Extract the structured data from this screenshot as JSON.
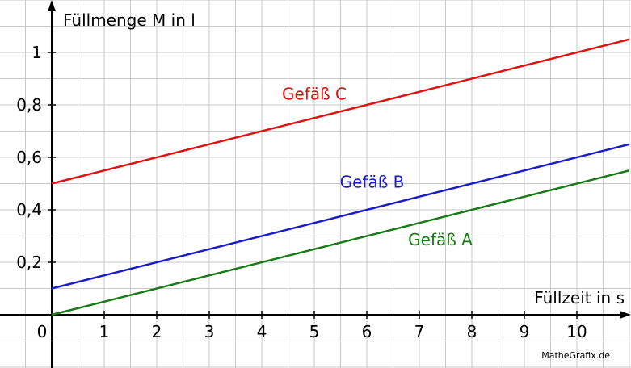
{
  "chart_data": {
    "type": "line",
    "xlabel": "Füllzeit in s",
    "ylabel": "Füllmenge M in l",
    "origin_label": "0",
    "xlim": [
      0,
      11
    ],
    "ylim": [
      0,
      1.05
    ],
    "x_ticks": [
      1,
      2,
      3,
      4,
      5,
      6,
      7,
      8,
      9,
      10
    ],
    "x_tick_labels": [
      "1",
      "2",
      "3",
      "4",
      "5",
      "6",
      "7",
      "8",
      "9",
      "10"
    ],
    "y_ticks": [
      0.2,
      0.4,
      0.6,
      0.8,
      1.0
    ],
    "y_tick_labels": [
      "0,2",
      "0,4",
      "0,6",
      "0,8",
      "1"
    ],
    "grid": true,
    "series": [
      {
        "name": "Gefäß A",
        "color": "#1a7a1a",
        "x": [
          0,
          11
        ],
        "y": [
          0.0,
          0.55
        ],
        "label_at": [
          7.4,
          0.265
        ]
      },
      {
        "name": "Gefäß B",
        "color": "#1a1acc",
        "x": [
          0,
          11
        ],
        "y": [
          0.1,
          0.65
        ],
        "label_at": [
          6.1,
          0.485
        ]
      },
      {
        "name": "Gefäß C",
        "color": "#dd1111",
        "x": [
          0,
          11
        ],
        "y": [
          0.5,
          1.05
        ],
        "label_at": [
          5.0,
          0.82
        ]
      }
    ]
  },
  "credit": "MatheGrafix.de"
}
